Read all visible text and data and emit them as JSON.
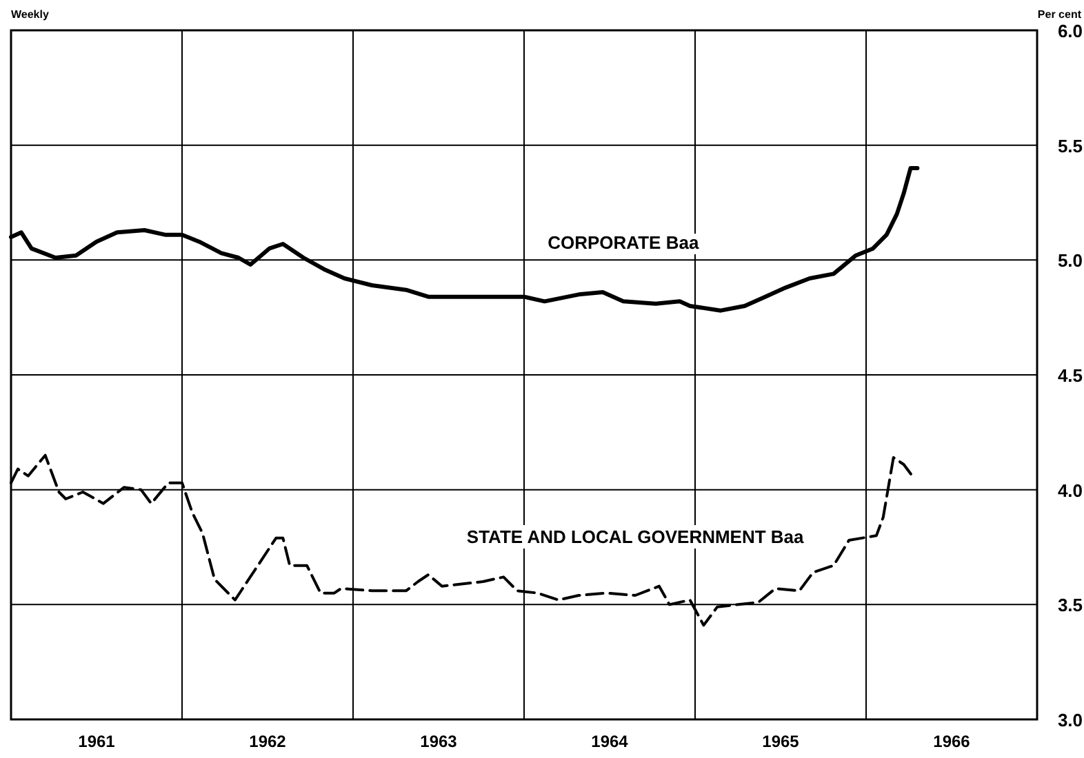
{
  "chart_data": {
    "type": "line",
    "ylabel": "Per cent",
    "annotations": [
      "Weekly"
    ],
    "xlim": [
      1961,
      1967
    ],
    "xticks": [
      {
        "value": 1961,
        "label": null
      },
      {
        "value": 1961.5,
        "label": "1961"
      },
      {
        "value": 1962,
        "label": null
      },
      {
        "value": 1962.5,
        "label": "1962"
      },
      {
        "value": 1963,
        "label": null
      },
      {
        "value": 1963.5,
        "label": "1963"
      },
      {
        "value": 1964,
        "label": null
      },
      {
        "value": 1964.5,
        "label": "1964"
      },
      {
        "value": 1965,
        "label": null
      },
      {
        "value": 1965.5,
        "label": "1965"
      },
      {
        "value": 1966,
        "label": null
      },
      {
        "value": 1966.5,
        "label": "1966"
      },
      {
        "value": 1967,
        "label": null
      }
    ],
    "ylim": [
      3,
      6
    ],
    "yticks": [
      {
        "value": 3,
        "label": "3.0"
      },
      {
        "value": 3.5,
        "label": "3.5"
      },
      {
        "value": 4,
        "label": "4.0"
      },
      {
        "value": 4.5,
        "label": "4.5"
      },
      {
        "value": 5,
        "label": "5.0"
      },
      {
        "value": 5.5,
        "label": "5.5"
      },
      {
        "value": 6,
        "label": "6.0"
      }
    ],
    "grid": true,
    "series": [
      {
        "name": "CORPORATE Baa",
        "color": "#000000",
        "line_style": "solid",
        "x": [
          1961.0,
          1961.06,
          1961.12,
          1961.26,
          1961.38,
          1961.5,
          1961.62,
          1961.78,
          1961.9,
          1962.0,
          1962.1,
          1962.23,
          1962.33,
          1962.4,
          1962.51,
          1962.59,
          1962.71,
          1962.83,
          1962.95,
          1963.11,
          1963.31,
          1963.44,
          1963.6,
          1963.84,
          1964.0,
          1964.12,
          1964.32,
          1964.46,
          1964.58,
          1964.77,
          1964.91,
          1964.97,
          1965.15,
          1965.29,
          1965.41,
          1965.53,
          1965.67,
          1965.81,
          1965.94,
          1966.04,
          1966.12,
          1966.18,
          1966.22,
          1966.26,
          1966.3
        ],
        "values": [
          5.1,
          5.12,
          5.05,
          5.01,
          5.02,
          5.08,
          5.12,
          5.13,
          5.11,
          5.11,
          5.08,
          5.03,
          5.01,
          4.98,
          5.05,
          5.07,
          5.01,
          4.96,
          4.92,
          4.89,
          4.87,
          4.84,
          4.84,
          4.84,
          4.84,
          4.82,
          4.85,
          4.86,
          4.82,
          4.81,
          4.82,
          4.8,
          4.78,
          4.8,
          4.84,
          4.88,
          4.92,
          4.94,
          5.02,
          5.05,
          5.11,
          5.2,
          5.29,
          5.4,
          5.4
        ]
      },
      {
        "name": "STATE AND LOCAL GOVERNMENT Baa",
        "color": "#000000",
        "line_style": "dashed",
        "x": [
          1961.0,
          1961.04,
          1961.1,
          1961.2,
          1961.28,
          1961.32,
          1961.42,
          1961.54,
          1961.66,
          1961.76,
          1961.82,
          1961.92,
          1962.0,
          1962.06,
          1962.12,
          1962.19,
          1962.31,
          1962.39,
          1962.55,
          1962.59,
          1962.63,
          1962.73,
          1962.81,
          1962.89,
          1962.93,
          1963.11,
          1963.31,
          1963.38,
          1963.44,
          1963.52,
          1963.76,
          1963.88,
          1963.96,
          1964.08,
          1964.2,
          1964.32,
          1964.48,
          1964.65,
          1964.79,
          1964.85,
          1964.97,
          1965.05,
          1965.13,
          1965.37,
          1965.47,
          1965.61,
          1965.69,
          1965.81,
          1965.9,
          1966.06,
          1966.1,
          1966.16,
          1966.22,
          1966.28
        ],
        "values": [
          4.03,
          4.09,
          4.06,
          4.15,
          3.99,
          3.96,
          3.99,
          3.94,
          4.01,
          4.0,
          3.94,
          4.03,
          4.03,
          3.9,
          3.81,
          3.61,
          3.52,
          3.61,
          3.79,
          3.79,
          3.67,
          3.67,
          3.55,
          3.55,
          3.57,
          3.56,
          3.56,
          3.6,
          3.63,
          3.58,
          3.6,
          3.62,
          3.56,
          3.55,
          3.52,
          3.54,
          3.55,
          3.54,
          3.58,
          3.5,
          3.52,
          3.41,
          3.49,
          3.51,
          3.57,
          3.56,
          3.64,
          3.67,
          3.78,
          3.8,
          3.88,
          4.14,
          4.11,
          4.05
        ]
      }
    ]
  }
}
